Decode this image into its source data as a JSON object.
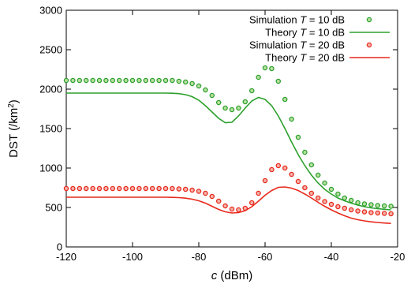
{
  "chart_data": {
    "type": "scatter",
    "title": "",
    "xlabel": {
      "var": "c",
      "unit": " (dBm)"
    },
    "ylabel": {
      "main": "DST (/km",
      "sup": "2",
      "end": ")"
    },
    "xlim": [
      -120,
      -20
    ],
    "ylim": [
      0,
      3000
    ],
    "xticks": [
      -120,
      -100,
      -80,
      -60,
      -40,
      -20
    ],
    "yticks": [
      0,
      500,
      1000,
      1500,
      2000,
      2500,
      3000
    ],
    "legend_position": "top-right",
    "series": [
      {
        "name_prefix": "Simulation ",
        "name_var": "T",
        "name_suffix": " = 10 dB",
        "kind": "points",
        "color": "#2ca02c",
        "x": [
          -120,
          -118,
          -116,
          -114,
          -112,
          -110,
          -108,
          -106,
          -104,
          -102,
          -100,
          -98,
          -96,
          -94,
          -92,
          -90,
          -88,
          -86,
          -84,
          -82,
          -80,
          -78,
          -76,
          -74,
          -72,
          -70,
          -68,
          -66,
          -64,
          -62,
          -60,
          -58,
          -56,
          -54,
          -52,
          -50,
          -48,
          -46,
          -44,
          -42,
          -40,
          -38,
          -36,
          -34,
          -32,
          -30,
          -28,
          -26,
          -24,
          -22
        ],
        "y": [
          2110,
          2110,
          2110,
          2110,
          2110,
          2110,
          2110,
          2110,
          2110,
          2110,
          2110,
          2110,
          2110,
          2110,
          2110,
          2110,
          2110,
          2100,
          2090,
          2070,
          2040,
          1990,
          1920,
          1830,
          1760,
          1740,
          1760,
          1840,
          1980,
          2150,
          2270,
          2260,
          2100,
          1870,
          1620,
          1390,
          1200,
          1040,
          910,
          810,
          730,
          670,
          620,
          590,
          560,
          545,
          535,
          525,
          520,
          515
        ]
      },
      {
        "name_prefix": "Theory  ",
        "name_var": "T",
        "name_suffix": " = 10 dB",
        "kind": "line",
        "color": "#2ca02c",
        "x": [
          -120,
          -115,
          -110,
          -105,
          -100,
          -95,
          -90,
          -88,
          -86,
          -84,
          -82,
          -80,
          -78,
          -76,
          -74,
          -72,
          -70,
          -68,
          -66,
          -64,
          -62,
          -60,
          -58,
          -56,
          -54,
          -52,
          -50,
          -48,
          -46,
          -44,
          -42,
          -40,
          -38,
          -36,
          -34,
          -32,
          -30,
          -28,
          -26,
          -24,
          -22
        ],
        "y": [
          1950,
          1950,
          1950,
          1950,
          1950,
          1950,
          1950,
          1948,
          1943,
          1930,
          1905,
          1860,
          1790,
          1710,
          1630,
          1575,
          1580,
          1660,
          1760,
          1850,
          1895,
          1870,
          1790,
          1660,
          1500,
          1330,
          1170,
          1030,
          910,
          810,
          730,
          670,
          620,
          585,
          555,
          530,
          510,
          495,
          485,
          477,
          470
        ]
      },
      {
        "name_prefix": "Simulation ",
        "name_var": "T",
        "name_suffix": " = 20 dB",
        "kind": "points",
        "color": "#e8291c",
        "x": [
          -120,
          -118,
          -116,
          -114,
          -112,
          -110,
          -108,
          -106,
          -104,
          -102,
          -100,
          -98,
          -96,
          -94,
          -92,
          -90,
          -88,
          -86,
          -84,
          -82,
          -80,
          -78,
          -76,
          -74,
          -72,
          -70,
          -68,
          -66,
          -64,
          -62,
          -60,
          -58,
          -56,
          -54,
          -52,
          -50,
          -48,
          -46,
          -44,
          -42,
          -40,
          -38,
          -36,
          -34,
          -32,
          -30,
          -28,
          -26,
          -24,
          -22
        ],
        "y": [
          740,
          740,
          740,
          740,
          740,
          740,
          740,
          740,
          740,
          740,
          740,
          740,
          740,
          740,
          740,
          740,
          740,
          735,
          730,
          720,
          705,
          680,
          640,
          580,
          520,
          480,
          470,
          490,
          560,
          680,
          840,
          980,
          1030,
          1000,
          920,
          830,
          750,
          680,
          620,
          575,
          540,
          510,
          490,
          470,
          455,
          445,
          435,
          430,
          425,
          420
        ]
      },
      {
        "name_prefix": "Theory  ",
        "name_var": "T",
        "name_suffix": " = 20 dB",
        "kind": "line",
        "color": "#e8291c",
        "x": [
          -120,
          -115,
          -110,
          -105,
          -100,
          -95,
          -90,
          -88,
          -86,
          -84,
          -82,
          -80,
          -78,
          -76,
          -74,
          -72,
          -70,
          -68,
          -66,
          -64,
          -62,
          -60,
          -58,
          -56,
          -54,
          -52,
          -50,
          -48,
          -46,
          -44,
          -42,
          -40,
          -38,
          -36,
          -34,
          -32,
          -30,
          -28,
          -26,
          -24,
          -22
        ],
        "y": [
          630,
          630,
          630,
          630,
          630,
          630,
          630,
          628,
          625,
          618,
          605,
          585,
          555,
          515,
          475,
          445,
          430,
          435,
          460,
          510,
          580,
          655,
          715,
          755,
          760,
          745,
          715,
          670,
          620,
          565,
          515,
          470,
          430,
          395,
          365,
          345,
          330,
          318,
          310,
          303,
          298
        ]
      }
    ]
  }
}
